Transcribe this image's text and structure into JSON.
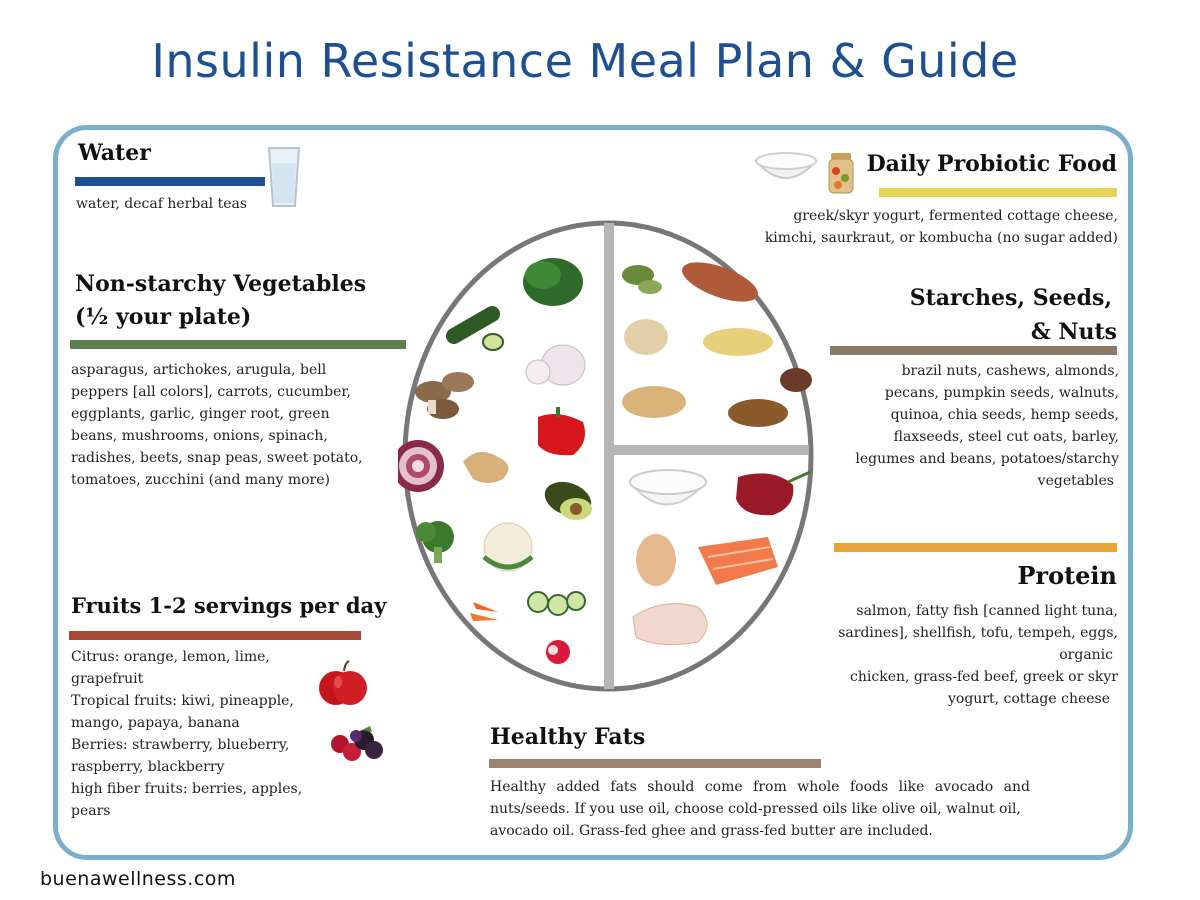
{
  "title": "Insulin Resistance Meal Plan & Guide",
  "colors": {
    "title": "#1d4f91",
    "frame": "#7aaecb",
    "water_bar": "#1d4f91",
    "vegetables_bar": "#5b7f52",
    "fruits_bar": "#a84a3a",
    "probiotic_bar": "#e6d35a",
    "starches_bar": "#8c7a66",
    "protein_bar": "#e8a23a",
    "fats_bar": "#9a8470",
    "plate_ring": "#777777"
  },
  "water": {
    "heading": "Water",
    "text": "water, decaf herbal teas"
  },
  "vegetables": {
    "heading_line1": "Non-starchy Vegetables",
    "heading_line2": "(½ your plate)",
    "lines": [
      "asparagus, artichokes, arugula, bell",
      "peppers [all colors], carrots, cucumber,",
      "eggplants, garlic, ginger root, green",
      "beans, mushrooms, onions, spinach,",
      "radishes, beets, snap peas, sweet potato,",
      "tomatoes,  zucchini (and many more)"
    ]
  },
  "fruits": {
    "heading": "Fruits 1-2 servings per day",
    "lines": [
      "Citrus: orange, lemon, lime,",
      "grapefruit",
      "Tropical fruits: kiwi, pineapple,",
      "mango, papaya, banana",
      "Berries: strawberry, blueberry,",
      "raspberry, blackberry",
      "high fiber fruits: berries, apples,",
      "pears"
    ]
  },
  "probiotic": {
    "heading": "Daily Probiotic Food",
    "lines": [
      "greek/skyr yogurt, fermented cottage cheese,",
      "kimchi, saurkraut, or kombucha (no sugar added)"
    ]
  },
  "starches": {
    "heading_line1": "Starches, Seeds,",
    "heading_line2": "& Nuts",
    "lines": [
      "brazil nuts, cashews, almonds,",
      "pecans, pumpkin seeds, walnuts,",
      "quinoa, chia seeds, hemp seeds,",
      "flaxseeds,  steel cut oats, barley,",
      "legumes and beans, potatoes/starchy",
      "vegetables"
    ]
  },
  "protein": {
    "heading": "Protein",
    "lines": [
      "salmon, fatty fish [canned light tuna,",
      "sardines], shellfish, tofu, tempeh, eggs,",
      "organic",
      "chicken, grass-fed beef, greek or skyr",
      "yogurt, cottage cheese"
    ]
  },
  "fats": {
    "heading": "Healthy Fats",
    "lines": [
      "Healthy added fats should come from whole foods like avocado and",
      "nuts/seeds.  If you use oil, choose cold-pressed oils like olive oil, walnut oil,",
      "avocado oil.  Grass-fed ghee and grass-fed butter are included."
    ]
  },
  "footer": "buenawellness.com"
}
